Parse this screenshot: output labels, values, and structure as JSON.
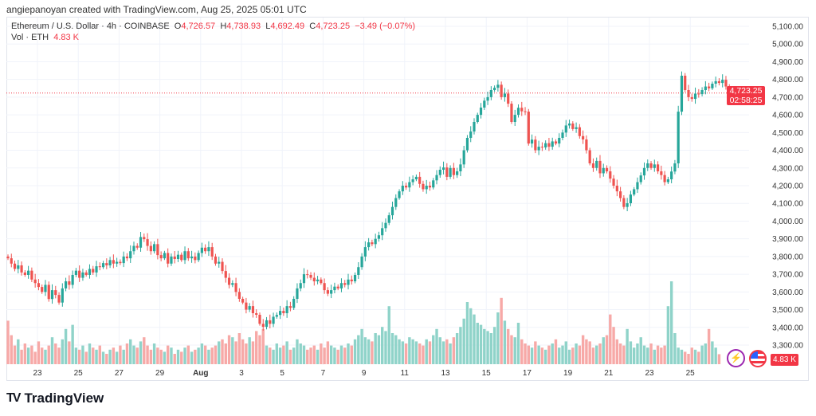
{
  "credit": "angiepanoyan created with TradingView.com, Aug 25, 2025 05:01 UTC",
  "legend": {
    "symbol": "Ethereum / U.S. Dollar · 4h · COINBASE",
    "o_label": "O",
    "o": "4,726.57",
    "h_label": "H",
    "h": "4,738.93",
    "l_label": "L",
    "l": "4,692.49",
    "c_label": "C",
    "c": "4,723.25",
    "change": "−3.49 (−0.07%)",
    "vol_label": "Vol · ETH",
    "vol": "4.83 K"
  },
  "price_tag": {
    "price": "4,723.25",
    "countdown": "02:58:25"
  },
  "vol_tag": "4.83 K",
  "logo": "TradingView",
  "colors": {
    "up": "#26a69a",
    "down": "#ef5350",
    "up_vol": "#8fd3c9",
    "down_vol": "#f7a9a7",
    "tag": "#f23645"
  },
  "chart_data": {
    "type": "candlestick",
    "title": "Ethereum / U.S. Dollar · 4h · COINBASE",
    "ylim": [
      3200,
      5100
    ],
    "y_ticks": [
      "5,100.00",
      "5,000.00",
      "4,900.00",
      "4,800.00",
      "4,700.00",
      "4,600.00",
      "4,500.00",
      "4,400.00",
      "4,300.00",
      "4,200.00",
      "4,100.00",
      "4,000.00",
      "3,900.00",
      "3,800.00",
      "3,700.00",
      "3,600.00",
      "3,500.00",
      "3,400.00",
      "3,300.00"
    ],
    "x_ticks": [
      "23",
      "25",
      "27",
      "29",
      "Aug",
      "3",
      "5",
      "7",
      "9",
      "11",
      "13",
      "15",
      "17",
      "19",
      "21",
      "23",
      "25"
    ],
    "last_price": 4723.25,
    "first_open": 3800,
    "closes": [
      3790,
      3760,
      3730,
      3750,
      3710,
      3696,
      3720,
      3670,
      3650,
      3628,
      3600,
      3640,
      3560,
      3610,
      3583,
      3540,
      3620,
      3660,
      3640,
      3696,
      3720,
      3680,
      3710,
      3696,
      3730,
      3710,
      3745,
      3740,
      3763,
      3750,
      3780,
      3760,
      3770,
      3763,
      3800,
      3790,
      3830,
      3860,
      3850,
      3910,
      3898,
      3860,
      3830,
      3870,
      3808,
      3790,
      3820,
      3760,
      3800,
      3786,
      3810,
      3780,
      3830,
      3790,
      3800,
      3780,
      3820,
      3850,
      3830,
      3853,
      3800,
      3760,
      3770,
      3718,
      3680,
      3640,
      3650,
      3600,
      3561,
      3540,
      3500,
      3520,
      3480,
      3471,
      3420,
      3403,
      3440,
      3420,
      3460,
      3470,
      3493,
      3480,
      3520,
      3510,
      3561,
      3620,
      3650,
      3700,
      3696,
      3680,
      3660,
      3670,
      3650,
      3610,
      3590,
      3610,
      3630,
      3620,
      3650,
      3640,
      3670,
      3660,
      3696,
      3740,
      3800,
      3853,
      3880,
      3870,
      3900,
      3920,
      3960,
      3990,
      4033,
      4080,
      4130,
      4168,
      4200,
      4190,
      4220,
      4236,
      4250,
      4210,
      4180,
      4200,
      4190,
      4230,
      4260,
      4290,
      4303,
      4250,
      4300,
      4260,
      4281,
      4320,
      4400,
      4470,
      4506,
      4560,
      4600,
      4641,
      4680,
      4700,
      4740,
      4753,
      4770,
      4700,
      4720,
      4663,
      4560,
      4600,
      4640,
      4620,
      4618,
      4438,
      4460,
      4400,
      4420,
      4416,
      4440,
      4420,
      4450,
      4438,
      4470,
      4500,
      4540,
      4551,
      4520,
      4530,
      4480,
      4461,
      4400,
      4326,
      4300,
      4340,
      4270,
      4300,
      4281,
      4240,
      4200,
      4168,
      4130,
      4080,
      4101,
      4150,
      4180,
      4220,
      4258,
      4300,
      4326,
      4300,
      4320,
      4281,
      4260,
      4220,
      4236,
      4280,
      4326,
      4618,
      4821,
      4740,
      4700,
      4690,
      4720,
      4717,
      4740,
      4760,
      4750,
      4776,
      4790,
      4780,
      4798,
      4760,
      4700,
      4723.25
    ],
    "volumes_k": [
      21,
      14,
      9,
      12,
      7,
      10,
      8,
      9,
      6,
      11,
      8,
      7,
      9,
      13,
      10,
      8,
      12,
      17,
      11,
      19,
      8,
      7,
      9,
      6,
      10,
      8,
      7,
      9,
      6,
      5,
      7,
      8,
      6,
      9,
      7,
      10,
      12,
      9,
      8,
      11,
      13,
      9,
      7,
      10,
      8,
      7,
      6,
      9,
      8,
      5,
      7,
      6,
      8,
      9,
      6,
      7,
      8,
      10,
      9,
      7,
      8,
      9,
      11,
      12,
      10,
      14,
      13,
      11,
      15,
      12,
      10,
      13,
      11,
      16,
      14,
      17,
      9,
      8,
      7,
      10,
      8,
      9,
      11,
      7,
      8,
      12,
      10,
      9,
      7,
      8,
      9,
      7,
      10,
      8,
      11,
      9,
      8,
      7,
      9,
      8,
      10,
      9,
      12,
      14,
      17,
      13,
      12,
      11,
      15,
      14,
      18,
      16,
      28,
      15,
      14,
      12,
      11,
      10,
      13,
      12,
      11,
      10,
      9,
      12,
      11,
      14,
      17,
      13,
      11,
      12,
      10,
      13,
      15,
      18,
      22,
      30,
      27,
      24,
      20,
      19,
      17,
      16,
      15,
      18,
      25,
      32,
      21,
      17,
      14,
      13,
      20,
      12,
      10,
      9,
      8,
      11,
      9,
      8,
      7,
      9,
      10,
      12,
      8,
      9,
      11,
      7,
      8,
      10,
      9,
      14,
      12,
      11,
      8,
      9,
      10,
      13,
      14,
      24,
      18,
      12,
      10,
      9,
      17,
      11,
      8,
      10,
      13,
      9,
      8,
      10,
      7,
      9,
      8,
      9,
      28,
      40,
      15,
      8,
      7,
      6,
      5,
      8,
      7,
      6,
      9,
      10,
      17,
      11,
      8,
      4.83
    ]
  }
}
